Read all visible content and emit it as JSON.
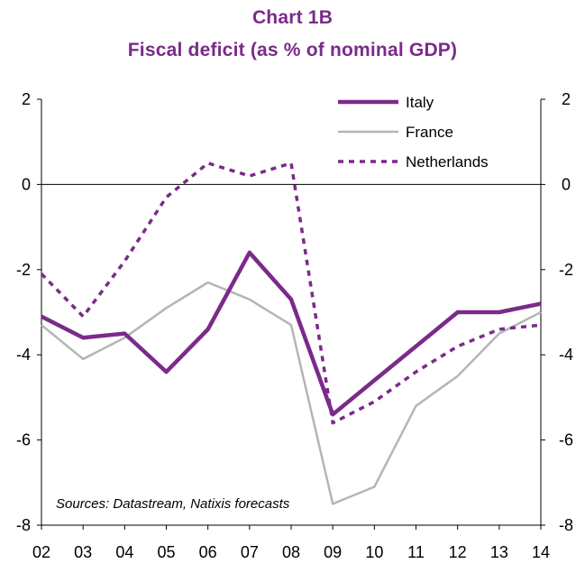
{
  "title": "Chart 1B",
  "subtitle": "Fiscal deficit (as % of nominal GDP)",
  "source_note": "Sources: Datastream, Natixis forecasts",
  "chart_data": {
    "type": "line",
    "x": [
      "02",
      "03",
      "04",
      "05",
      "06",
      "07",
      "08",
      "09",
      "10",
      "11",
      "12",
      "13",
      "14"
    ],
    "ylim": [
      -8,
      2
    ],
    "yticks": [
      "2",
      "0",
      "-2",
      "-4",
      "-6",
      "-8"
    ],
    "grid": false,
    "legend_position": "top-right",
    "series": [
      {
        "name": "Italy",
        "color": "#7b2a8a",
        "style": "solid-thick",
        "values": [
          -3.1,
          -3.6,
          -3.5,
          -4.4,
          -3.4,
          -1.6,
          -2.7,
          -5.4,
          -4.6,
          -3.8,
          -3.0,
          -3.0,
          -2.8
        ]
      },
      {
        "name": "France",
        "color": "#b5b5b5",
        "style": "solid-thin",
        "values": [
          -3.3,
          -4.1,
          -3.6,
          -2.9,
          -2.3,
          -2.7,
          -3.3,
          -7.5,
          -7.1,
          -5.2,
          -4.5,
          -3.5,
          -3.0
        ]
      },
      {
        "name": "Netherlands",
        "color": "#7b2a8a",
        "style": "dotted",
        "values": [
          -2.1,
          -3.1,
          -1.8,
          -0.3,
          0.5,
          0.2,
          0.5,
          -5.6,
          -5.1,
          -4.4,
          -3.8,
          -3.4,
          -3.3
        ]
      }
    ]
  }
}
